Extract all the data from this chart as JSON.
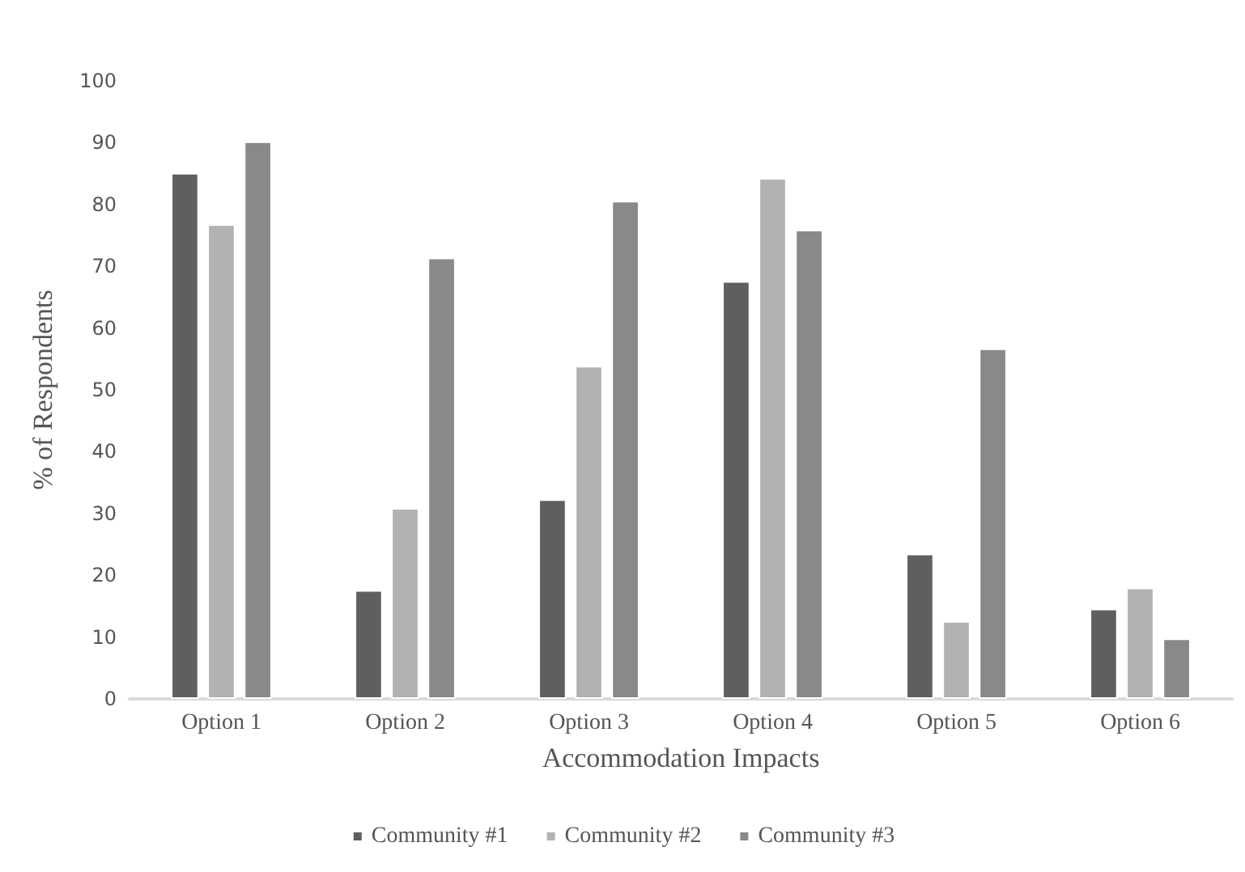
{
  "chart_data": {
    "type": "bar",
    "xlabel": "Accommodation Impacts",
    "ylabel": "% of Respondents",
    "categories": [
      "Option 1",
      "Option 2",
      "Option 3",
      "Option 4",
      "Option 5",
      "Option 6"
    ],
    "series": [
      {
        "name": "Community #1",
        "color": "#5f5f5f",
        "values": [
          85.1,
          17.6,
          32.3,
          67.6,
          23.5,
          14.6
        ]
      },
      {
        "name": "Community #2",
        "color": "#b2b2b2",
        "values": [
          76.8,
          30.9,
          53.9,
          84.3,
          12.6,
          18.0
        ]
      },
      {
        "name": "Community #3",
        "color": "#898989",
        "values": [
          90.2,
          71.4,
          80.6,
          75.9,
          56.7,
          9.8
        ]
      }
    ],
    "ylim": [
      0,
      100
    ],
    "yticks": [
      0,
      10,
      20,
      30,
      40,
      50,
      60,
      70,
      80,
      90,
      100
    ],
    "grid": false,
    "legend": "bottom"
  }
}
